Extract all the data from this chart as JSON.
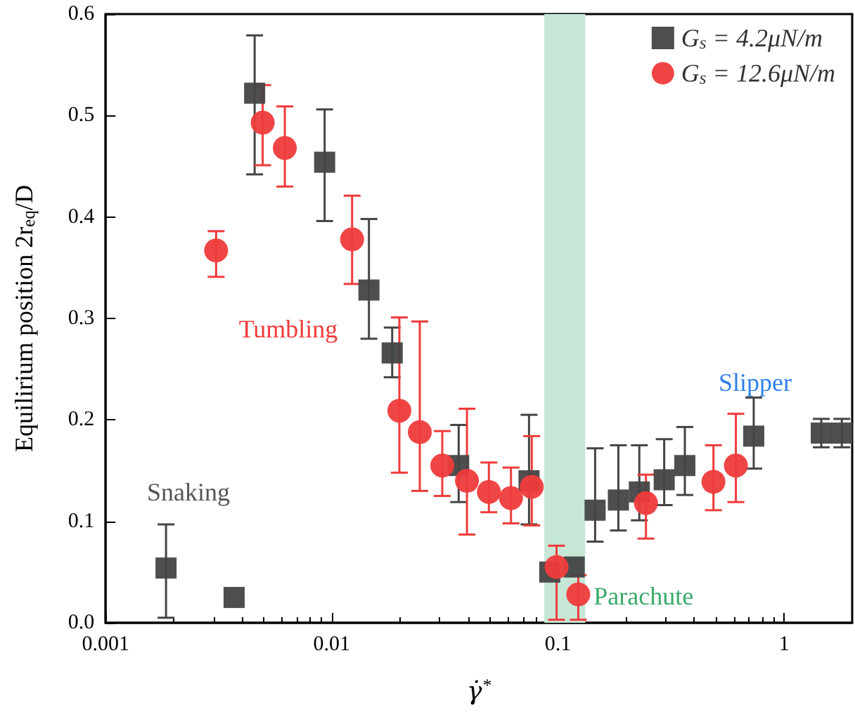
{
  "chart_data": {
    "type": "scatter",
    "xlabel": "γ̇$^{*}$",
    "ylabel": "Equilirium position 2r$_{eq}$/D",
    "log": "x",
    "xlim": [
      0.001,
      2
    ],
    "xticks": [
      0.001,
      0.01,
      0.1,
      1
    ],
    "ylim": [
      0,
      0.6
    ],
    "yticks": [
      {
        "value": 0,
        "label": "0.0"
      },
      0.1,
      0.2,
      0.3,
      0.4,
      0.5,
      0.6
    ],
    "legend": "top right",
    "grid": false,
    "series": [
      {
        "name": "G$_{s}$ = 4.2μN/m",
        "color": "#444444",
        "marker": "square",
        "x": [
          0.00185,
          0.0037,
          0.00456,
          0.0093,
          0.0146,
          0.0185,
          0.0364,
          0.0745,
          0.092,
          0.118,
          0.146,
          0.185,
          0.229,
          0.295,
          0.364,
          0.734,
          1.46,
          1.8
        ],
        "values": [
          0.054,
          0.025,
          0.522,
          0.454,
          0.328,
          0.266,
          0.155,
          0.14,
          0.05,
          0.055,
          0.111,
          0.121,
          0.129,
          0.141,
          0.155,
          0.184,
          0.187,
          0.187
        ],
        "errors": [
          [
            0.005,
            0.097
          ],
          null,
          [
            0.442,
            0.579
          ],
          [
            0.396,
            0.506
          ],
          [
            0.28,
            0.398
          ],
          [
            0.242,
            0.291
          ],
          [
            0.119,
            0.195
          ],
          [
            0.097,
            0.205
          ],
          null,
          null,
          [
            0.08,
            0.172
          ],
          [
            0.091,
            0.175
          ],
          [
            0.101,
            0.175
          ],
          [
            0.116,
            0.181
          ],
          [
            0.126,
            0.193
          ],
          [
            0.152,
            0.222
          ],
          [
            0.173,
            0.201
          ],
          [
            0.173,
            0.201
          ]
        ]
      },
      {
        "name": "G$_{s}$ = 12.6μN/m",
        "color": "#ef3b3b",
        "marker": "circle",
        "x": [
          0.00308,
          0.00495,
          0.0062,
          0.0123,
          0.0199,
          0.0245,
          0.0308,
          0.0396,
          0.0495,
          0.062,
          0.0766,
          0.0986,
          0.123,
          0.245,
          0.487,
          0.612
        ],
        "values": [
          0.367,
          0.493,
          0.468,
          0.378,
          0.209,
          0.188,
          0.155,
          0.14,
          0.129,
          0.123,
          0.134,
          0.055,
          0.028,
          0.118,
          0.139,
          0.155
        ],
        "errors": [
          [
            0.341,
            0.386
          ],
          [
            0.451,
            0.53
          ],
          [
            0.43,
            0.509
          ],
          [
            0.334,
            0.421
          ],
          [
            0.148,
            0.301
          ],
          [
            0.13,
            0.297
          ],
          [
            0.125,
            0.189
          ],
          [
            0.087,
            0.211
          ],
          [
            0.109,
            0.158
          ],
          [
            0.098,
            0.153
          ],
          [
            0.096,
            0.184
          ],
          [
            0.003,
            0.076
          ],
          [
            0.003,
            0.047
          ],
          [
            0.083,
            0.146
          ],
          [
            0.111,
            0.175
          ],
          [
            0.119,
            0.206
          ]
        ]
      }
    ],
    "bands": [
      {
        "axis": "x",
        "from": 0.087,
        "to": 0.132,
        "label": "Parachute",
        "color": "#c6e7d6"
      }
    ],
    "annotations": [
      "Snaking",
      "Tumbling",
      "Slipper"
    ]
  }
}
